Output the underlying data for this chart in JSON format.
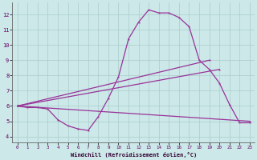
{
  "xlabel": "Windchill (Refroidissement éolien,°C)",
  "bg_color": "#cce8e8",
  "line_color": "#993399",
  "grid_color": "#aacccc",
  "xlim": [
    -0.5,
    23.5
  ],
  "ylim": [
    3.6,
    12.8
  ],
  "xticks": [
    0,
    1,
    2,
    3,
    4,
    5,
    6,
    7,
    8,
    9,
    10,
    11,
    12,
    13,
    14,
    15,
    16,
    17,
    18,
    19,
    20,
    21,
    22,
    23
  ],
  "yticks": [
    4,
    5,
    6,
    7,
    8,
    9,
    10,
    11,
    12
  ],
  "line1_x": [
    0,
    1,
    2,
    3,
    4,
    5,
    6,
    7,
    8,
    9,
    10,
    11,
    12,
    13,
    14,
    15,
    16,
    17,
    18,
    19,
    20,
    21,
    22,
    23
  ],
  "line1_y": [
    6.0,
    5.9,
    5.9,
    5.8,
    5.1,
    4.7,
    4.5,
    4.4,
    5.3,
    6.5,
    7.9,
    10.4,
    11.5,
    12.3,
    12.1,
    12.1,
    11.8,
    11.2,
    9.0,
    8.4,
    7.5,
    6.1,
    4.9,
    4.9
  ],
  "line2_x": [
    0,
    19
  ],
  "line2_y": [
    6.0,
    9.0
  ],
  "line3_x": [
    0,
    20
  ],
  "line3_y": [
    6.0,
    8.4
  ],
  "line4_x": [
    0,
    23
  ],
  "line4_y": [
    6.0,
    5.0
  ]
}
